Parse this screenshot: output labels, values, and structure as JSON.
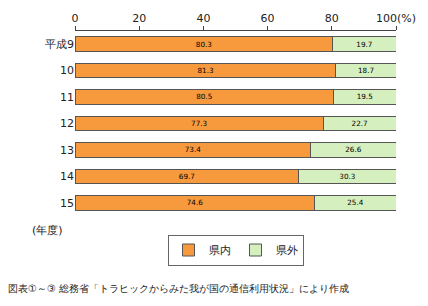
{
  "chart_data": {
    "type": "bar",
    "orientation": "horizontal",
    "stacked": true,
    "data_labels": true,
    "categories": [
      "平成9",
      "10",
      "11",
      "12",
      "13",
      "14",
      "15"
    ],
    "series": [
      {
        "name": "県内",
        "color": "#f79a3e",
        "values": [
          80.3,
          81.3,
          80.5,
          77.3,
          73.4,
          69.7,
          74.6
        ]
      },
      {
        "name": "県外",
        "color": "#d6efbe",
        "values": [
          19.7,
          18.7,
          19.5,
          22.7,
          26.6,
          30.3,
          25.4
        ]
      }
    ],
    "xlim": [
      0,
      100
    ],
    "xticks": [
      0,
      20,
      40,
      60,
      80,
      {
        "value": 100,
        "label": "100(%)"
      }
    ],
    "ylabel": "(年度)",
    "annotations": [
      "図表①～③ 総務省「トラヒックからみた我が国の通信利用状況」により作成"
    ],
    "grid": false,
    "legend": "bottom"
  }
}
